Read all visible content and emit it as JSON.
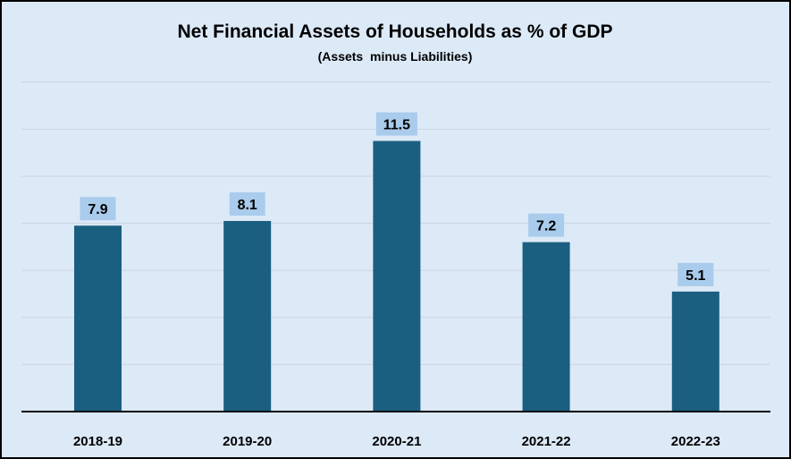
{
  "chart_data": {
    "type": "bar",
    "title": "Net Financial Assets of Households as % of GDP",
    "subtitle": "(Assets  minus Liabilities)",
    "xlabel": "",
    "ylabel": "",
    "categories": [
      "2018-19",
      "2019-20",
      "2020-21",
      "2021-22",
      "2022-23"
    ],
    "values": [
      7.9,
      8.1,
      11.5,
      7.2,
      5.1
    ],
    "data_labels": [
      "7.9",
      "8.1",
      "11.5",
      "7.2",
      "5.1"
    ],
    "ylim": [
      0,
      14
    ],
    "grid": true,
    "legend": "none",
    "colors": {
      "background": "#dce9f7",
      "bar": "#1a5f80",
      "label_box": "#a9cbec",
      "gridline": "#c9d5e2",
      "axis": "#000000"
    }
  }
}
